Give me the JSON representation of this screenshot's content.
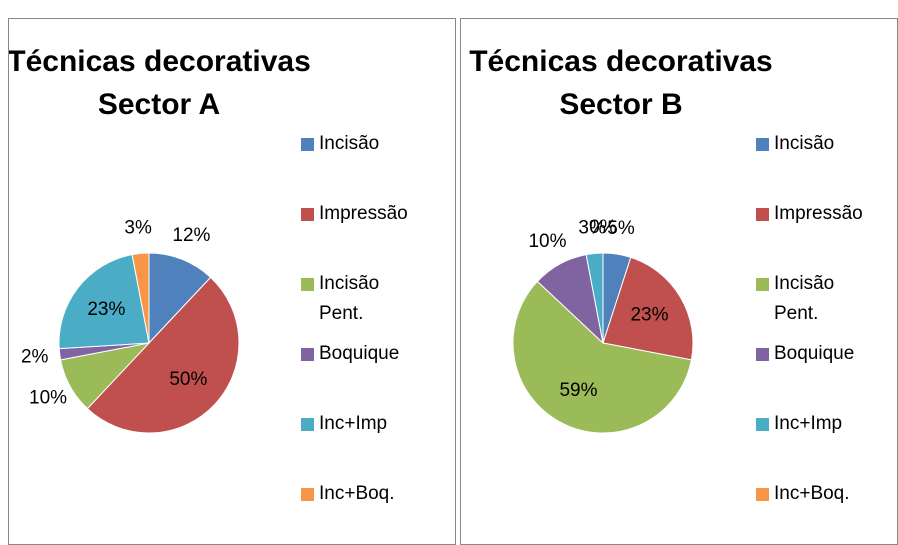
{
  "chart_data": [
    {
      "type": "pie",
      "title": [
        "Técnicas decorativas",
        "Sector A"
      ],
      "categories": [
        "Incisão",
        "Impressão",
        "Incisão Pent.",
        "Boquique",
        "Inc+Imp",
        "Inc+Boq."
      ],
      "values": [
        12,
        50,
        10,
        2,
        23,
        3
      ],
      "value_labels": [
        "12%",
        "50%",
        "10%",
        "2%",
        "23%",
        "3%"
      ],
      "colors": [
        "#4f81bd",
        "#c0504d",
        "#9bbb59",
        "#8064a2",
        "#4bacc6",
        "#f79646"
      ],
      "legend": "right"
    },
    {
      "type": "pie",
      "title": [
        "Técnicas decorativas",
        "Sector B"
      ],
      "categories": [
        "Incisão",
        "Impressão",
        "Incisão Pent.",
        "Boquique",
        "Inc+Imp",
        "Inc+Boq."
      ],
      "values": [
        5,
        23,
        59,
        10,
        3,
        0
      ],
      "value_labels": [
        "5%",
        "23%",
        "59%",
        "10%",
        "3%",
        "0%"
      ],
      "colors": [
        "#4f81bd",
        "#c0504d",
        "#9bbb59",
        "#8064a2",
        "#4bacc6",
        "#f79646"
      ],
      "legend": "right"
    }
  ]
}
